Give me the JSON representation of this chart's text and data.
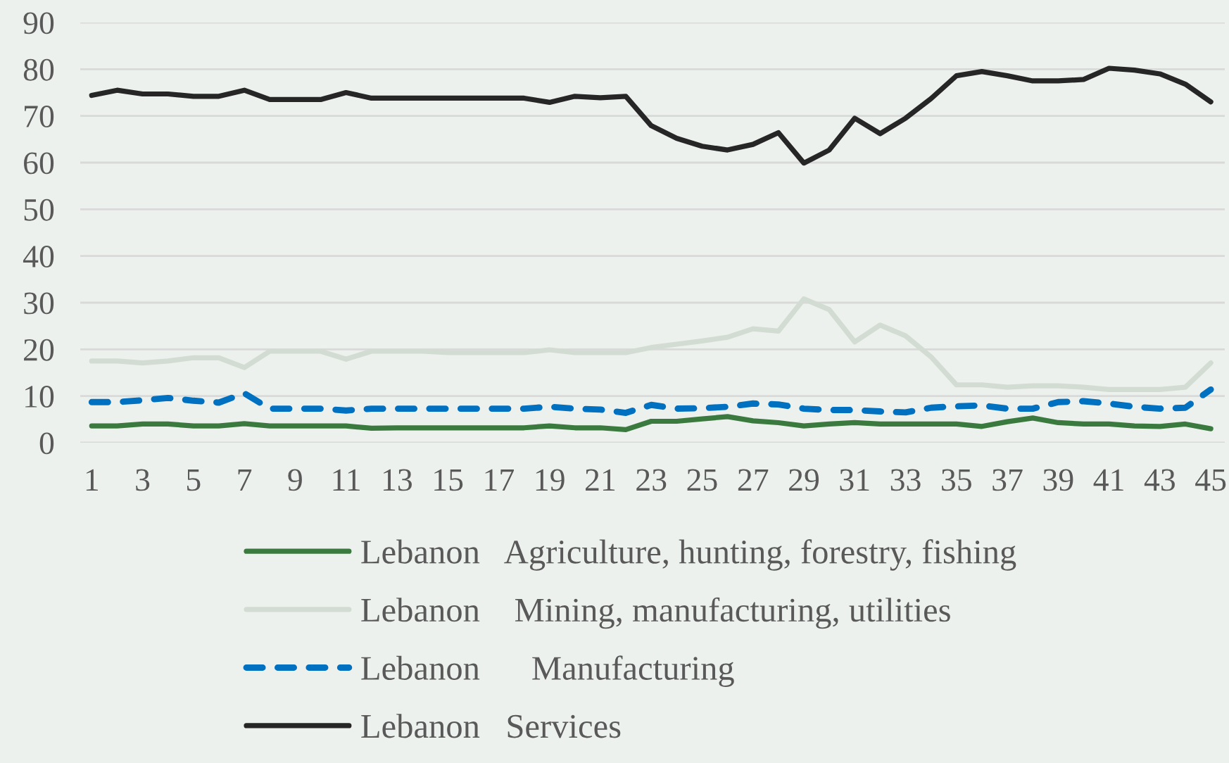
{
  "chart_data": {
    "type": "line",
    "categories": [
      "1",
      null,
      "3",
      null,
      "5",
      null,
      "7",
      null,
      "9",
      null,
      "11",
      null,
      "13",
      null,
      "15",
      null,
      "17",
      null,
      "19",
      null,
      "21",
      null,
      "23",
      null,
      "25",
      null,
      "27",
      null,
      "29",
      null,
      "31",
      null,
      "33",
      null,
      "35",
      null,
      "37",
      null,
      "39",
      null,
      "41",
      null,
      "43",
      null,
      "45"
    ],
    "series": [
      {
        "name": "Lebanon   Agriculture, hunting, forestry, fishing",
        "color": "#3b7a3f",
        "line_style": "solid",
        "values": [
          3.6,
          3.6,
          4.0,
          4.0,
          3.6,
          3.6,
          4.1,
          3.6,
          3.6,
          3.6,
          3.6,
          3.1,
          3.2,
          3.2,
          3.2,
          3.2,
          3.2,
          3.2,
          3.6,
          3.2,
          3.2,
          2.8,
          4.6,
          4.6,
          5.1,
          5.6,
          4.7,
          4.3,
          3.6,
          4.0,
          4.3,
          4.0,
          4.0,
          4.0,
          4.0,
          3.5,
          4.5,
          5.3,
          4.3,
          4.0,
          4.0,
          3.6,
          3.5,
          4.0,
          3.0
        ]
      },
      {
        "name": "Lebanon    Mining, manufacturing, utilities",
        "color": "#d3dcd3",
        "line_style": "solid",
        "values": [
          17.5,
          17.5,
          17.1,
          17.5,
          18.2,
          18.2,
          16.1,
          19.6,
          19.6,
          19.6,
          17.9,
          19.6,
          19.6,
          19.6,
          19.3,
          19.3,
          19.3,
          19.3,
          19.9,
          19.3,
          19.3,
          19.3,
          20.4,
          21.1,
          21.8,
          22.6,
          24.4,
          23.9,
          30.8,
          28.5,
          21.6,
          25.2,
          22.9,
          18.4,
          12.4,
          12.4,
          11.9,
          12.2,
          12.2,
          11.9,
          11.4,
          11.4,
          11.4,
          11.9,
          17.1
        ]
      },
      {
        "name": "Lebanon      Manufacturing",
        "color": "#0070c0",
        "line_style": "dashed",
        "values": [
          8.7,
          8.7,
          9.1,
          9.6,
          9.0,
          8.6,
          10.6,
          7.3,
          7.3,
          7.3,
          6.9,
          7.3,
          7.3,
          7.3,
          7.3,
          7.3,
          7.3,
          7.3,
          7.7,
          7.3,
          7.1,
          6.4,
          8.1,
          7.3,
          7.4,
          7.7,
          8.4,
          8.2,
          7.3,
          7.0,
          7.0,
          6.7,
          6.5,
          7.5,
          7.8,
          8.0,
          7.3,
          7.3,
          8.7,
          8.9,
          8.4,
          7.7,
          7.3,
          7.5,
          11.4
        ]
      },
      {
        "name": "Lebanon   Services",
        "color": "#262626",
        "line_style": "solid",
        "values": [
          74.4,
          75.5,
          74.7,
          74.7,
          74.2,
          74.2,
          75.5,
          73.5,
          73.5,
          73.5,
          75.0,
          73.8,
          73.8,
          73.8,
          73.8,
          73.8,
          73.8,
          73.8,
          72.9,
          74.2,
          73.9,
          74.2,
          67.9,
          65.2,
          63.5,
          62.7,
          63.9,
          66.4,
          59.9,
          62.7,
          69.5,
          66.2,
          69.5,
          73.7,
          78.6,
          79.5,
          78.6,
          77.5,
          77.5,
          77.8,
          80.2,
          79.8,
          79.0,
          76.8,
          73.0
        ]
      }
    ],
    "ylim": [
      0,
      90
    ],
    "yticks": [
      0,
      10,
      20,
      30,
      40,
      50,
      60,
      70,
      80,
      90
    ],
    "grid": "y",
    "legend": "bottom"
  }
}
